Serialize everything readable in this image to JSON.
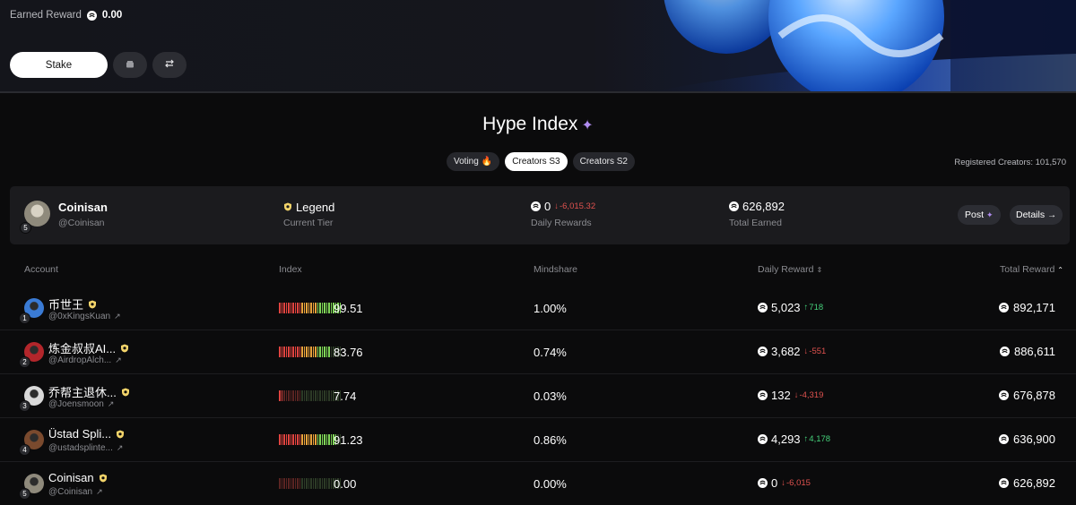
{
  "hero": {
    "earned_label": "Earned Reward",
    "earned_value": "0.00",
    "stake_label": "Stake",
    "icons": [
      "stake-token-icon",
      "wallet-icon",
      "swap-arrows-icon"
    ]
  },
  "title": "Hype Index",
  "tabs": [
    {
      "label": "Voting",
      "icon": "fire-icon",
      "active": false
    },
    {
      "label": "Creators S3",
      "active": true
    },
    {
      "label": "Creators S2",
      "active": false
    }
  ],
  "registered": "Registered Creators: 101,570",
  "summary": {
    "rank": "5",
    "name": "Coinisan",
    "handle": "@Coinisan",
    "tier": "Legend",
    "tier_label": "Current Tier",
    "daily_value": "0",
    "daily_change": "-6,015.32",
    "daily_label": "Daily Rewards",
    "total_value": "626,892",
    "total_label": "Total Earned",
    "post_label": "Post",
    "details_label": "Details"
  },
  "table": {
    "headers": {
      "account": "Account",
      "index": "Index",
      "mindshare": "Mindshare",
      "daily": "Daily Reward",
      "total": "Total Reward"
    },
    "rows": [
      {
        "rank": "1",
        "name": "币世王",
        "handle": "@0xKingsKuan",
        "index": "99.51",
        "index_level": 0.9951,
        "mindshare": "1.00%",
        "daily": "5,023",
        "change": "718",
        "dir": "up",
        "total": "892,171",
        "avatar_color": "#3a7bd5"
      },
      {
        "rank": "2",
        "name": "炼金叔叔AI...",
        "handle": "@AirdropAlch...",
        "index": "83.76",
        "index_level": 0.8376,
        "mindshare": "0.74%",
        "daily": "3,682",
        "change": "-551",
        "dir": "down",
        "total": "886,611",
        "avatar_color": "#b3262b"
      },
      {
        "rank": "3",
        "name": "乔帮主退休...",
        "handle": "@Joensmoon",
        "index": "7.74",
        "index_level": 0.0774,
        "mindshare": "0.03%",
        "daily": "132",
        "change": "-4,319",
        "dir": "down",
        "total": "676,878",
        "avatar_color": "#d9d9d9"
      },
      {
        "rank": "4",
        "name": "Üstad Spli...",
        "handle": "@ustadsplinte...",
        "index": "91.23",
        "index_level": 0.9123,
        "mindshare": "0.86%",
        "daily": "4,293",
        "change": "4,178",
        "dir": "up",
        "total": "636,900",
        "avatar_color": "#7a4a2e"
      },
      {
        "rank": "5",
        "name": "Coinisan",
        "handle": "@Coinisan",
        "index": "0.00",
        "index_level": 0.0,
        "mindshare": "0.00%",
        "daily": "0",
        "change": "-6,015",
        "dir": "down",
        "total": "626,892",
        "avatar_color": "#8f8a7c"
      }
    ]
  }
}
